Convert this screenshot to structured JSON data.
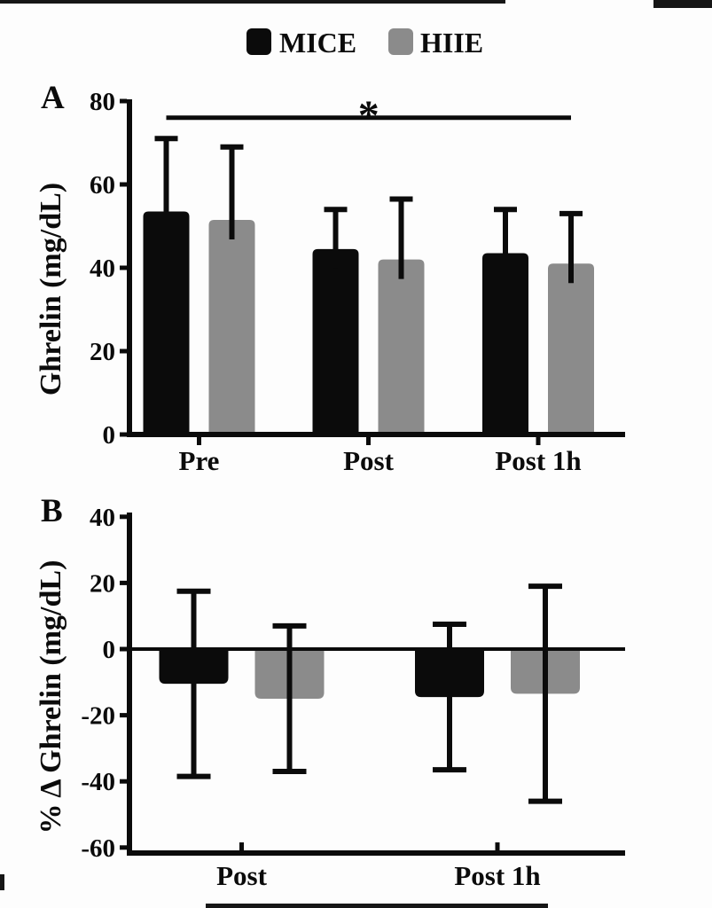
{
  "figure": {
    "background": "#fdfdfd",
    "ink_color": "#0b0b0b",
    "gray_color": "#8b8b8b",
    "legend": {
      "items": [
        {
          "label": "MICE",
          "color": "#0b0b0b",
          "swatch": "black-square-icon"
        },
        {
          "label": "HIIE",
          "color": "#8b8b8b",
          "swatch": "gray-square-icon"
        }
      ]
    }
  },
  "chart_data": [
    {
      "type": "bar",
      "panel": "A",
      "title": "",
      "xlabel": "",
      "ylabel": "Ghrelin (mg/dL)",
      "categories": [
        "Pre",
        "Post",
        "Post 1h"
      ],
      "series": [
        {
          "name": "MICE",
          "color": "#0b0b0b",
          "values": [
            53.5,
            44.5,
            43.5
          ],
          "sd_upper": [
            17.5,
            9.5,
            10.5
          ]
        },
        {
          "name": "HIIE",
          "color": "#8b8b8b",
          "values": [
            51.5,
            42.0,
            41.0
          ],
          "sd_upper": [
            17.5,
            14.5,
            12.0
          ]
        }
      ],
      "ylim": [
        0,
        80
      ],
      "yticks": [
        0,
        20,
        40,
        60,
        80
      ],
      "grid": false,
      "error_bars": "upper-only, black, capped",
      "significance": {
        "symbol": "*",
        "from_category": "Pre",
        "to_category": "Post 1h",
        "line_y_value": 76
      }
    },
    {
      "type": "bar",
      "panel": "B",
      "title": "",
      "xlabel": "",
      "ylabel": "% Δ Ghrelin (mg/dL)",
      "categories": [
        "Post",
        "Post 1h"
      ],
      "series": [
        {
          "name": "MICE",
          "color": "#0b0b0b",
          "values": [
            -10.5,
            -14.5
          ],
          "sd": [
            28.0,
            22.0
          ]
        },
        {
          "name": "HIIE",
          "color": "#8b8b8b",
          "values": [
            -15.0,
            -13.5
          ],
          "sd": [
            22.0,
            32.5
          ]
        }
      ],
      "ylim": [
        -60,
        40
      ],
      "yticks": [
        -60,
        -40,
        -20,
        0,
        20,
        40
      ],
      "grid": false,
      "error_bars": "symmetric, black, capped both ends, drawn over bars",
      "baseline": 0
    }
  ]
}
